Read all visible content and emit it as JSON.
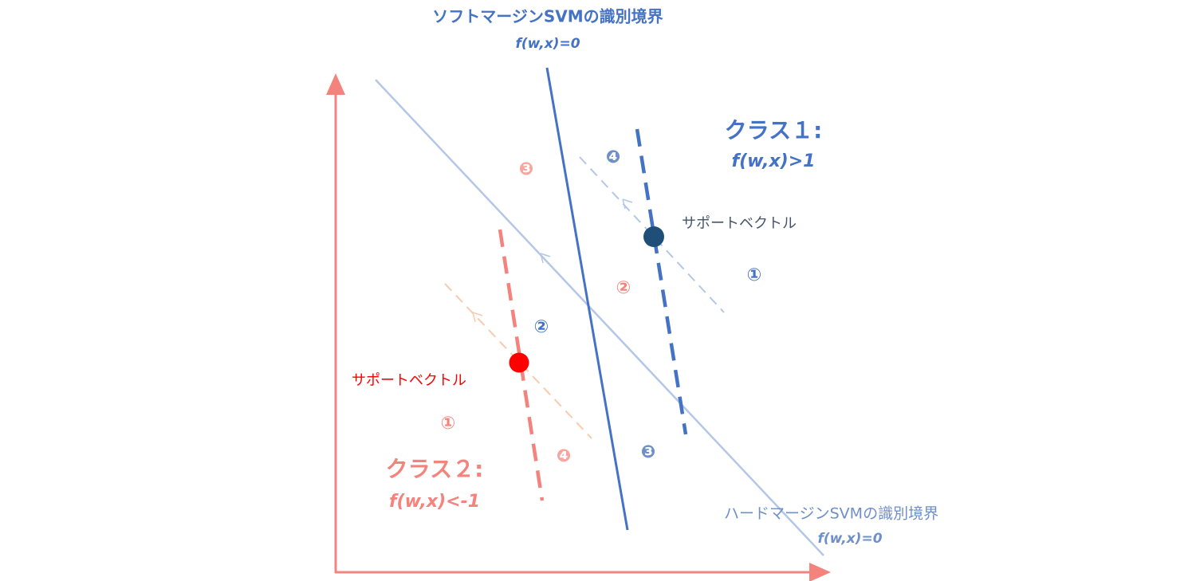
{
  "soft_boundary": {
    "title": "ソフトマージンSVMの識別境界",
    "formula": "f(w,x)=0"
  },
  "hard_boundary": {
    "title": "ハードマージンSVMの識別境界",
    "formula": "f(w,x)=0"
  },
  "class1": {
    "label": "クラス１:",
    "formula": "f(w,x)>1",
    "support_vector": "サポートベクトル",
    "regions": [
      "①",
      "②",
      "❸",
      "❹"
    ]
  },
  "class2": {
    "label": "クラス２:",
    "formula": "f(w,x)<-1",
    "support_vector": "サポートベクトル",
    "regions": [
      "①",
      "②",
      "❸",
      "❹"
    ]
  }
}
